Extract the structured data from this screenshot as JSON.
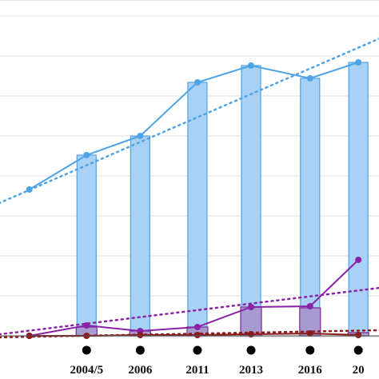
{
  "chart_data": {
    "type": "bar",
    "categories": [
      "",
      "2004/5",
      "2006",
      "2011",
      "2013",
      "2016",
      "20"
    ],
    "x": [
      1,
      2.6,
      4.1,
      5.7,
      7.2,
      8.85,
      10.2
    ],
    "xlim": [
      0,
      10.8
    ],
    "ylim": [
      0,
      420
    ],
    "grid": true,
    "legend": "none",
    "series": [
      {
        "kind": "bar",
        "color": "#a9d1f5",
        "edge": "#4da3e6",
        "values": [
          null,
          226,
          250,
          317,
          338,
          322,
          342
        ]
      },
      {
        "kind": "line",
        "color": "#4da3e6",
        "values": [
          183,
          226,
          250,
          317,
          338,
          322,
          342
        ]
      },
      {
        "kind": "bar",
        "color": "#a69ad0",
        "edge": "#7d2a97",
        "values": [
          null,
          11,
          6,
          11,
          36,
          35,
          4
        ]
      },
      {
        "kind": "line",
        "color": "#8a22a8",
        "values": [
          0,
          13,
          6,
          11,
          36,
          37,
          95
        ]
      },
      {
        "kind": "line",
        "color": "#8b1b1b",
        "values": [
          0,
          0,
          1,
          1,
          2,
          3,
          1
        ]
      },
      {
        "kind": "trend",
        "color": "#4da3e6",
        "from": [
          0,
          163
        ],
        "to": [
          10.8,
          372
        ]
      },
      {
        "kind": "trend",
        "color": "#8a22a8",
        "from": [
          0,
          1
        ],
        "to": [
          10.8,
          60
        ]
      },
      {
        "kind": "trend",
        "color": "#8b1b1b",
        "from": [
          0,
          -2
        ],
        "to": [
          10.8,
          7
        ]
      }
    ]
  }
}
